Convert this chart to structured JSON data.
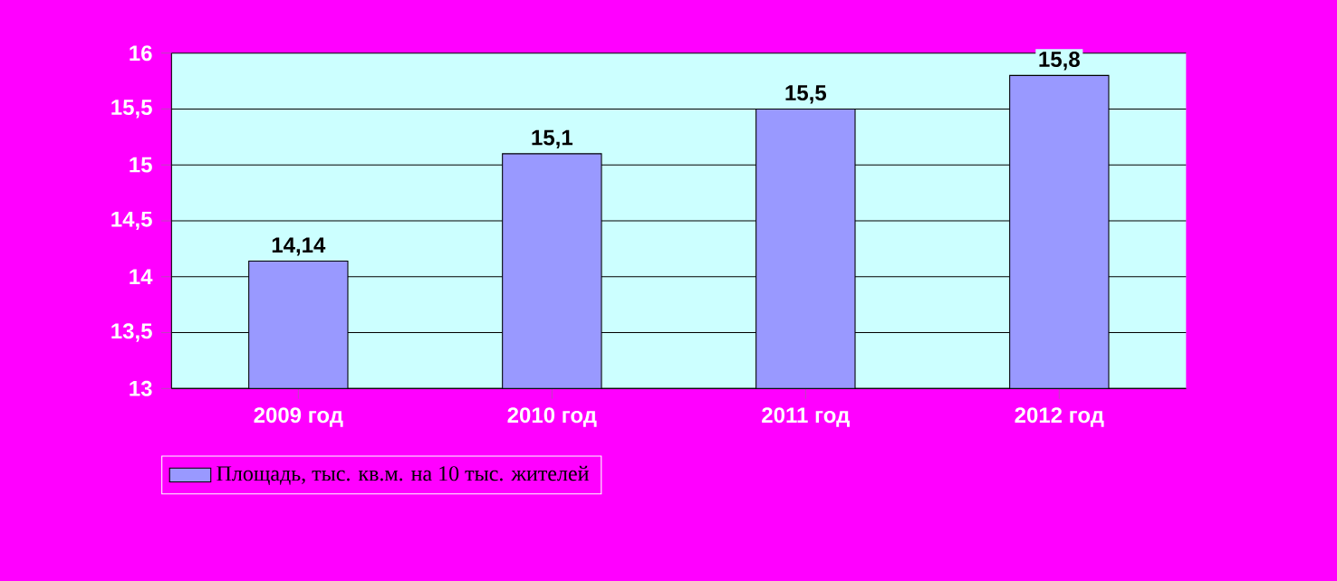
{
  "chart_data": {
    "type": "bar",
    "categories": [
      "2009 год",
      "2010 год",
      "2011 год",
      "2012 год"
    ],
    "series": [
      {
        "name": "Площадь, тыс. кв.м. на 10 тыс. жителей",
        "color": "#9999ff",
        "values": [
          14.14,
          15.1,
          15.5,
          15.8
        ],
        "value_labels": [
          "14,14",
          "15,1",
          "15,5",
          "15,8"
        ]
      }
    ],
    "ylim": [
      13,
      16
    ],
    "yticks": [
      13,
      {
        "value": 13.5,
        "label": "13,5"
      },
      14,
      {
        "value": 14.5,
        "label": "14,5"
      },
      15,
      {
        "value": 15.5,
        "label": "15,5"
      },
      16
    ],
    "grid": "y",
    "legend": "bottom left"
  }
}
